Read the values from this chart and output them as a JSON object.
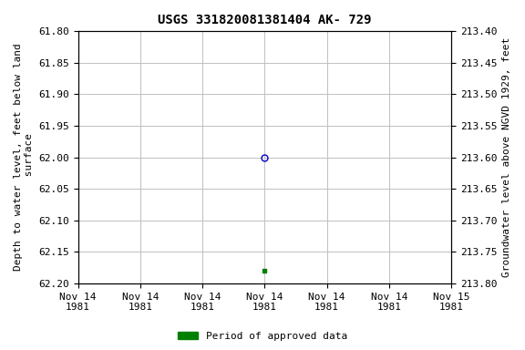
{
  "title": "USGS 331820081381404 AK- 729",
  "left_ylabel": "Depth to water level, feet below land\n surface",
  "right_ylabel": "Groundwater level above NGVD 1929, feet",
  "ylim_left": [
    61.8,
    62.2
  ],
  "ylim_right": [
    213.4,
    213.8
  ],
  "yticks_left": [
    61.8,
    61.85,
    61.9,
    61.95,
    62.0,
    62.05,
    62.1,
    62.15,
    62.2
  ],
  "yticks_right": [
    213.8,
    213.75,
    213.7,
    213.65,
    213.6,
    213.55,
    213.5,
    213.45,
    213.4
  ],
  "yticks_right_labels": [
    "213.80",
    "213.75",
    "213.70",
    "213.65",
    "213.60",
    "213.55",
    "213.50",
    "213.45",
    "213.40"
  ],
  "data_points": [
    {
      "x_hours": 12,
      "y": 62.0,
      "marker": "o",
      "color": "#0000cc",
      "filled": false,
      "size": 5
    },
    {
      "x_hours": 12,
      "y": 62.18,
      "marker": "s",
      "color": "#008000",
      "filled": true,
      "size": 3
    }
  ],
  "x_tick_hours": [
    0,
    4,
    8,
    12,
    16,
    20,
    24
  ],
  "x_tick_labels": [
    "Nov 14\n1981",
    "Nov 14\n1981",
    "Nov 14\n1981",
    "Nov 14\n1981",
    "Nov 14\n1981",
    "Nov 14\n1981",
    "Nov 15\n1981"
  ],
  "xlim": [
    0,
    24
  ],
  "legend_label": "Period of approved data",
  "legend_color": "#008000",
  "background_color": "#ffffff",
  "grid_color": "#c0c0c0",
  "title_fontsize": 10,
  "label_fontsize": 8,
  "tick_fontsize": 8
}
